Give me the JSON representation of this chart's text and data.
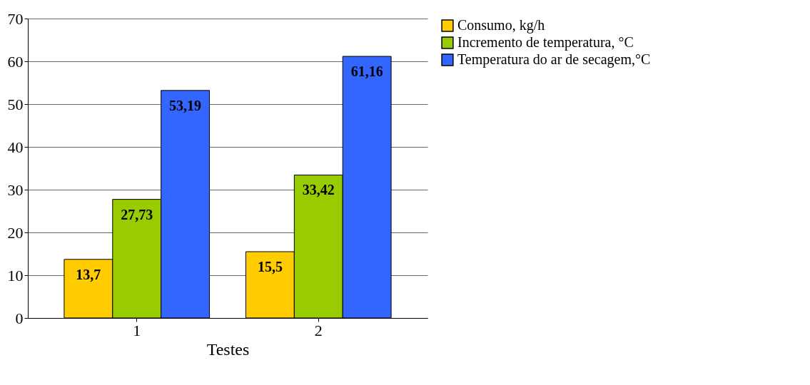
{
  "chart_data": {
    "type": "bar",
    "xlabel": "Testes",
    "categories": [
      "1",
      "2"
    ],
    "series": [
      {
        "name": "Consumo, kg/h",
        "color": "#ffcc00",
        "values": [
          13.7,
          15.5
        ],
        "value_labels": [
          "13,7",
          "15,5"
        ]
      },
      {
        "name": "Incremento de temperatura, °C",
        "color": "#99cc00",
        "values": [
          27.73,
          33.42
        ],
        "value_labels": [
          "27,73",
          "33,42"
        ]
      },
      {
        "name": "Temperatura do ar de secagem,°C",
        "color": "#3366ff",
        "values": [
          53.19,
          61.16
        ],
        "value_labels": [
          "53,19",
          "61,16"
        ]
      }
    ],
    "ylim": [
      0,
      70
    ],
    "yticks": [
      0,
      10,
      20,
      30,
      40,
      50,
      60,
      70
    ],
    "grid": "y",
    "legend": "right"
  }
}
